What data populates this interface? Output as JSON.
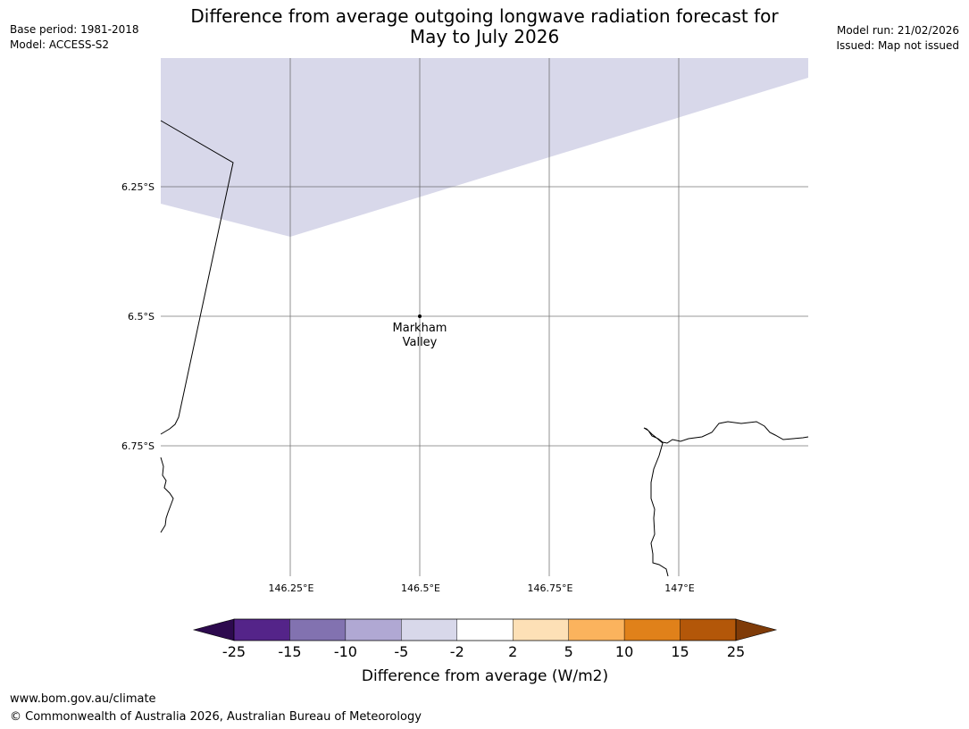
{
  "header": {
    "base_period": "Base period: 1981-2018",
    "model": "Model: ACCESS-S2",
    "model_run": "Model run: 21/02/2026",
    "issued": "Issued: Map not issued",
    "title_line1": "Difference from average outgoing longwave radiation forecast for",
    "title_line2": "May to July 2026"
  },
  "map": {
    "lat_labels": [
      "6.25°S",
      "6.5°S",
      "6.75°S"
    ],
    "lon_labels": [
      "146.25°E",
      "146.5°E",
      "146.75°E",
      "147°E"
    ],
    "place": {
      "name_line1": "Markham",
      "name_line2": "Valley"
    },
    "shaded_band_label": "-5 to -2"
  },
  "colorbar": {
    "ticks": [
      "-25",
      "-15",
      "-10",
      "-5",
      "-2",
      "2",
      "5",
      "10",
      "15",
      "25"
    ],
    "colors": [
      "#2d0a4e",
      "#542489",
      "#8272b0",
      "#b0a8d3",
      "#d8d8ea",
      "#ffffff",
      "#fde0b6",
      "#fbb35d",
      "#e0811a",
      "#b35709",
      "#7f3b08"
    ],
    "label": "Difference from average (W/m2)"
  },
  "footer": {
    "url": "www.bom.gov.au/climate",
    "copyright": "© Commonwealth of Australia 2026, Australian Bureau of Meteorology"
  }
}
